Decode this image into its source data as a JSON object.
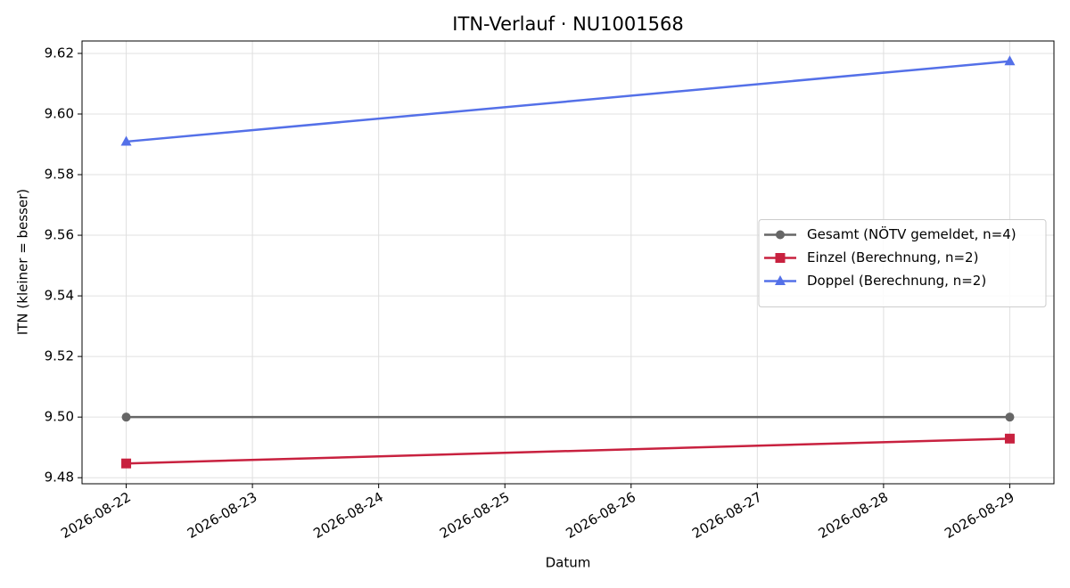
{
  "chart_data": {
    "type": "line",
    "title": "ITN-Verlauf · NU1001568",
    "x_label": "Datum",
    "y_label": "ITN  (kleiner = besser)",
    "x": [
      "2026-08-22",
      "2026-08-29"
    ],
    "xlim": [
      "2026-08-21T15:36Z",
      "2026-08-29T08:24Z"
    ],
    "xticks": [
      "2026-08-22",
      "2026-08-23",
      "2026-08-24",
      "2026-08-25",
      "2026-08-26",
      "2026-08-27",
      "2026-08-28",
      "2026-08-29"
    ],
    "ylim": [
      9.478,
      9.6241
    ],
    "yticks": [
      9.48,
      {
        "value": 9.5,
        "label": "9.50"
      },
      9.52,
      9.54,
      9.56,
      9.58,
      {
        "value": 9.6,
        "label": "9.60"
      },
      9.62
    ],
    "grid": true,
    "legend": "center right",
    "series": [
      {
        "name": "Gesamt (NÖTV gemeldet, n=4)",
        "color": "#666666",
        "marker": "circle",
        "values": [
          9.5,
          9.5
        ]
      },
      {
        "name": "Einzel (Berechnung, n=2)",
        "color": "#c8213f",
        "marker": "square",
        "values": [
          9.4847,
          9.4929
        ]
      },
      {
        "name": "Doppel (Berechnung, n=2)",
        "color": "#5470e8",
        "marker": "triangle",
        "values": [
          9.5909,
          9.6174
        ]
      }
    ]
  }
}
